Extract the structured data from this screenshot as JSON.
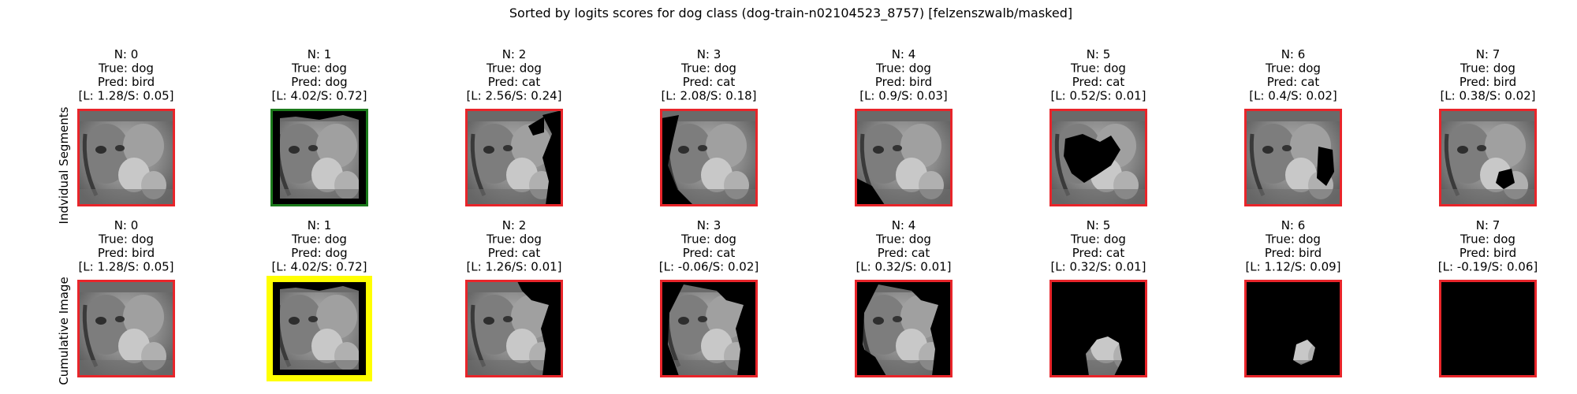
{
  "title": "Sorted by logits scores for dog class (dog-train-n02104523_8757) [felzenszwalb/masked]",
  "chart_data": {
    "type": "image-grid",
    "title": "Sorted by logits scores for dog class (dog-train-n02104523_8757) [felzenszwalb/masked]",
    "colors": {
      "frame_default": "#e8252a",
      "frame_correct": "#1b7a1b",
      "frame_best": "#ffff00",
      "image_gray": "#808080"
    },
    "rows": [
      {
        "label": "Indvidual Segments",
        "panels": [
          {
            "n": "N: 0",
            "true": "True: dog",
            "pred": "Pred: bird",
            "scores": "[L: 1.28/S: 0.05]",
            "frame": "default",
            "mask": "none"
          },
          {
            "n": "N: 1",
            "true": "True: dog",
            "pred": "Pred: dog",
            "scores": "[L: 4.02/S: 0.72]",
            "frame": "correct",
            "mask": "outer-border"
          },
          {
            "n": "N: 2",
            "true": "True: dog",
            "pred": "Pred: cat",
            "scores": "[L: 2.56/S: 0.24]",
            "frame": "default",
            "mask": "right-strip"
          },
          {
            "n": "N: 3",
            "true": "True: dog",
            "pred": "Pred: cat",
            "scores": "[L: 2.08/S: 0.18]",
            "frame": "default",
            "mask": "left-arc"
          },
          {
            "n": "N: 4",
            "true": "True: dog",
            "pred": "Pred: bird",
            "scores": "[L: 0.9/S: 0.03]",
            "frame": "default",
            "mask": "bottom-left"
          },
          {
            "n": "N: 5",
            "true": "True: dog",
            "pred": "Pred: cat",
            "scores": "[L: 0.52/S: 0.01]",
            "frame": "default",
            "mask": "center-blob"
          },
          {
            "n": "N: 6",
            "true": "True: dog",
            "pred": "Pred: cat",
            "scores": "[L: 0.4/S: 0.02]",
            "frame": "default",
            "mask": "right-lower"
          },
          {
            "n": "N: 7",
            "true": "True: dog",
            "pred": "Pred: bird",
            "scores": "[L: 0.38/S: 0.02]",
            "frame": "default",
            "mask": "small-center"
          }
        ]
      },
      {
        "label": "Cumulative Image",
        "panels": [
          {
            "n": "N: 0",
            "true": "True: dog",
            "pred": "Pred: bird",
            "scores": "[L: 1.28/S: 0.05]",
            "frame": "default",
            "mask": "none"
          },
          {
            "n": "N: 1",
            "true": "True: dog",
            "pred": "Pred: dog",
            "scores": "[L: 4.02/S: 0.72]",
            "frame": "best",
            "mask": "outer-border"
          },
          {
            "n": "N: 2",
            "true": "True: dog",
            "pred": "Pred: cat",
            "scores": "[L: 1.26/S: 0.01]",
            "frame": "default",
            "mask": "cum-2"
          },
          {
            "n": "N: 3",
            "true": "True: dog",
            "pred": "Pred: cat",
            "scores": "[L: -0.06/S: 0.02]",
            "frame": "default",
            "mask": "cum-3"
          },
          {
            "n": "N: 4",
            "true": "True: dog",
            "pred": "Pred: cat",
            "scores": "[L: 0.32/S: 0.01]",
            "frame": "default",
            "mask": "cum-4"
          },
          {
            "n": "N: 5",
            "true": "True: dog",
            "pred": "Pred: cat",
            "scores": "[L: 0.32/S: 0.01]",
            "frame": "default",
            "mask": "cum-5"
          },
          {
            "n": "N: 6",
            "true": "True: dog",
            "pred": "Pred: bird",
            "scores": "[L: 1.12/S: 0.09]",
            "frame": "default",
            "mask": "cum-6"
          },
          {
            "n": "N: 7",
            "true": "True: dog",
            "pred": "Pred: bird",
            "scores": "[L: -0.19/S: 0.06]",
            "frame": "default",
            "mask": "all"
          }
        ]
      }
    ]
  }
}
